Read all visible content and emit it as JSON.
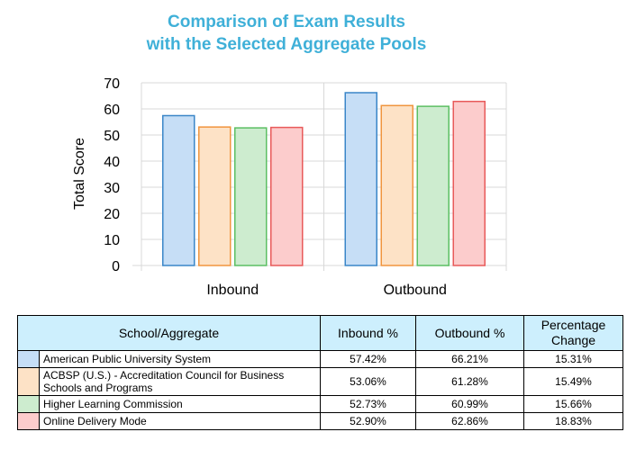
{
  "chart_data": {
    "type": "bar",
    "title_line1": "Comparison of Exam Results",
    "title_line2": "with the Selected Aggregate Pools",
    "xlabel": "",
    "ylabel": "Total Score",
    "ylim": [
      0,
      70
    ],
    "yticks": [
      "0",
      "10",
      "20",
      "30",
      "40",
      "50",
      "60",
      "70"
    ],
    "grid": true,
    "legend": "none",
    "categories": [
      "Inbound",
      "Outbound"
    ],
    "series": [
      {
        "name": "American Public University System",
        "values": [
          57.42,
          66.21
        ],
        "fill": "#c6def6",
        "stroke": "#3a86c8"
      },
      {
        "name": "ACBSP (U.S.) - Accreditation Council for Business Schools and Programs",
        "values": [
          53.06,
          61.28
        ],
        "fill": "#fde2c6",
        "stroke": "#f0953e"
      },
      {
        "name": "Higher Learning Commission",
        "values": [
          52.73,
          60.99
        ],
        "fill": "#cdeccf",
        "stroke": "#5cbf63"
      },
      {
        "name": "Online Delivery Mode",
        "values": [
          52.9,
          62.86
        ],
        "fill": "#fccccc",
        "stroke": "#e85a5a"
      }
    ]
  },
  "table": {
    "headers": [
      "School/Aggregate",
      "Inbound %",
      "Outbound %",
      "Percentage Change"
    ],
    "rows": [
      {
        "name": "American Public University System",
        "inbound": "57.42%",
        "outbound": "66.21%",
        "change": "15.31%",
        "color": "#c6def6"
      },
      {
        "name": "ACBSP (U.S.) - Accreditation Council for Business Schools and Programs",
        "inbound": "53.06%",
        "outbound": "61.28%",
        "change": "15.49%",
        "color": "#fde2c6"
      },
      {
        "name": "Higher Learning Commission",
        "inbound": "52.73%",
        "outbound": "60.99%",
        "change": "15.66%",
        "color": "#cdeccf"
      },
      {
        "name": "Online Delivery Mode",
        "inbound": "52.90%",
        "outbound": "62.86%",
        "change": "18.83%",
        "color": "#fccccc"
      }
    ]
  }
}
